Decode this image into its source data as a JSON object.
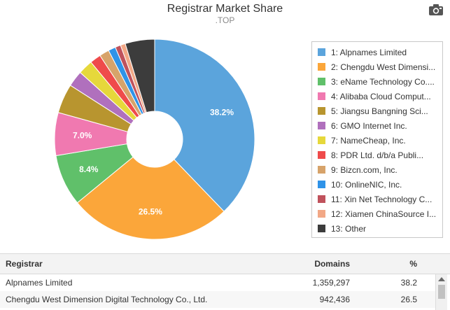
{
  "header": {
    "title": "Registrar Market Share",
    "subtitle": ".TOP",
    "export_icon": "camera-icon"
  },
  "chart_data": {
    "type": "pie",
    "donut": true,
    "legend_position": "right",
    "slices": [
      {
        "label": "1: Alpnames Limited",
        "value": 38.2,
        "color": "#5ba4dc",
        "data_label": "38.2%"
      },
      {
        "label": "2: Chengdu West Dimensi...",
        "value": 26.5,
        "color": "#fba63a",
        "data_label": "26.5%"
      },
      {
        "label": "3: eName Technology Co....",
        "value": 8.4,
        "color": "#60c06a",
        "data_label": "8.4%"
      },
      {
        "label": "4: Alibaba Cloud Comput...",
        "value": 7.0,
        "color": "#f079b0",
        "data_label": "7.0%"
      },
      {
        "label": "5: Jiangsu Bangning Sci...",
        "value": 4.8,
        "color": "#b8952f",
        "data_label": ""
      },
      {
        "label": "6: GMO Internet Inc.",
        "value": 2.6,
        "color": "#b070bd",
        "data_label": ""
      },
      {
        "label": "7: NameCheap, Inc.",
        "value": 2.4,
        "color": "#e6d83b",
        "data_label": ""
      },
      {
        "label": "8: PDR Ltd. d/b/a Publi...",
        "value": 1.8,
        "color": "#ef4b4b",
        "data_label": ""
      },
      {
        "label": "9: Bizcn.com, Inc.",
        "value": 1.6,
        "color": "#d7a36a",
        "data_label": ""
      },
      {
        "label": "10: OnlineNIC, Inc.",
        "value": 1.2,
        "color": "#2f93e8",
        "data_label": ""
      },
      {
        "label": "11: Xin Net Technology C...",
        "value": 0.9,
        "color": "#c0525c",
        "data_label": ""
      },
      {
        "label": "12: Xiamen ChinaSource I...",
        "value": 0.8,
        "color": "#f2a886",
        "data_label": ""
      },
      {
        "label": "13: Other",
        "value": 4.8,
        "color": "#3c3c3c",
        "data_label": ""
      }
    ]
  },
  "table": {
    "headers": {
      "name": "Registrar",
      "domains": "Domains",
      "pct": "%"
    },
    "rows": [
      {
        "name": "Alpnames Limited",
        "domains": "1,359,297",
        "pct": "38.2"
      },
      {
        "name": "Chengdu West Dimension Digital Technology Co., Ltd.",
        "domains": "942,436",
        "pct": "26.5"
      }
    ]
  }
}
